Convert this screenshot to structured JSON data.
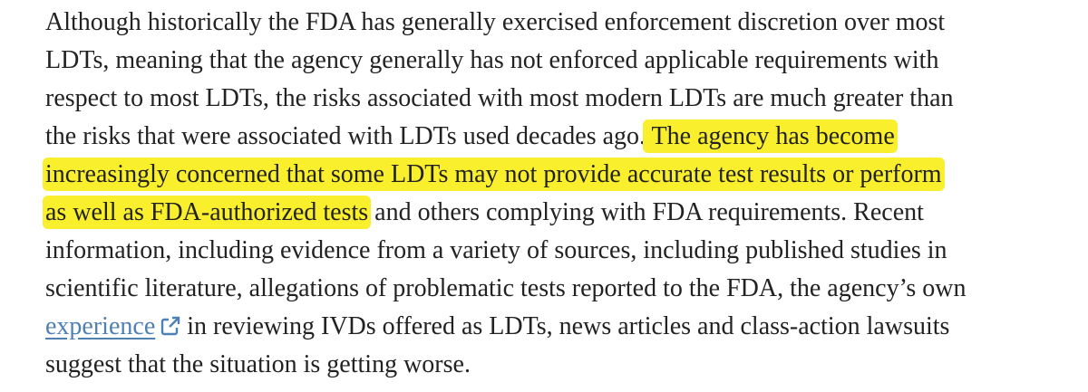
{
  "document": {
    "lines": [
      [
        {
          "text": "Although historically the FDA has generally exercised enforcement discretion over most"
        }
      ],
      [
        {
          "text": "LDTs, meaning that the agency generally has not enforced applicable requirements with"
        }
      ],
      [
        {
          "text": "respect to most LDTs, the risks associated with most modern LDTs are much greater than"
        }
      ],
      [
        {
          "text": "the risks that were associated with LDTs used decades ago."
        },
        {
          "text": " The agency has become",
          "highlight": true
        }
      ],
      [
        {
          "text": "increasingly concerned that some LDTs may not provide accurate test results or perform",
          "highlight": true
        }
      ],
      [
        {
          "text": "as well as FDA-authorized tests",
          "highlight": true
        },
        {
          "text": " and others complying with FDA requirements. Recent"
        }
      ],
      [
        {
          "text": "information, including evidence from a variety of sources, including published studies in"
        }
      ],
      [
        {
          "text": "scientific literature, allegations of problematic tests reported to the FDA, the agency’s own"
        }
      ],
      [
        {
          "text": "experience",
          "link": true
        },
        {
          "text": " in reviewing IVDs offered as LDTs, news articles and class-action lawsuits"
        }
      ],
      [
        {
          "text": "suggest that the situation is getting worse."
        }
      ]
    ]
  }
}
